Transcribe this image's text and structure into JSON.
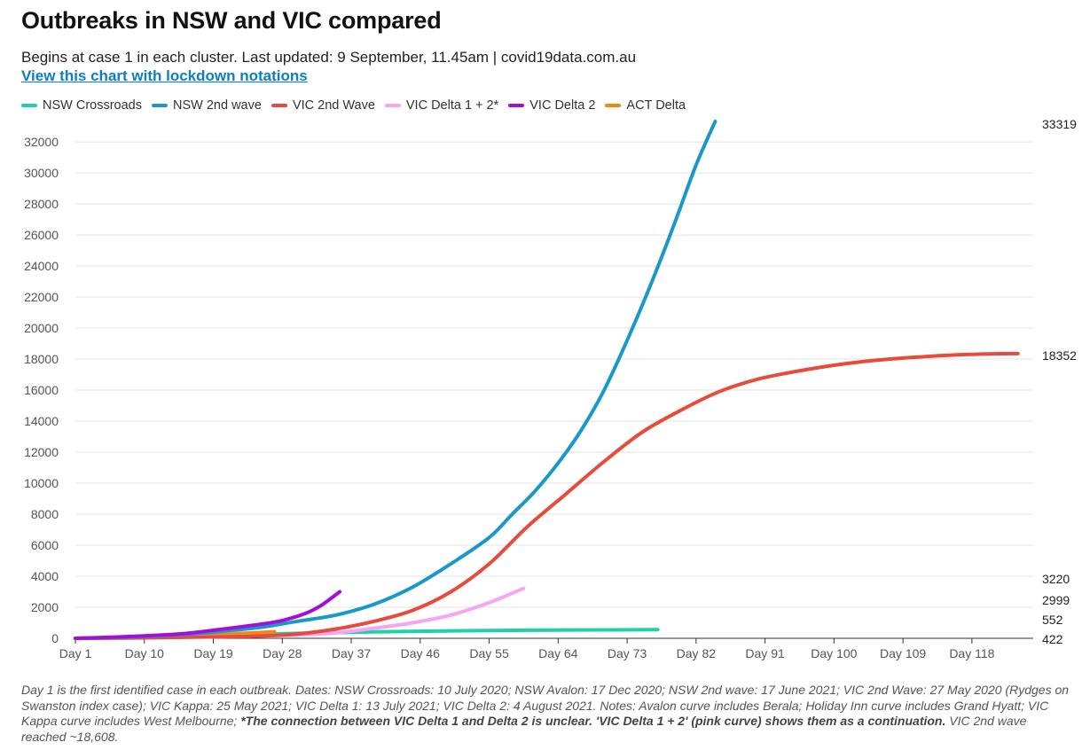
{
  "title": "Outbreaks in NSW and VIC compared",
  "subtitle": "Begins at case 1 in each cluster. Last updated: 9 September, 11.45am | covid19data.com.au",
  "link_text": "View this chart with lockdown notations",
  "note": {
    "part1": "Day 1 is the first identified case in each outbreak. Dates: NSW Crossroads: 10 July 2020; NSW Avalon: 17 Dec 2020; NSW 2nd wave: 17 June 2021; VIC 2nd Wave: 27 May 2020 (Rydges on Swanston index case); VIC Kappa: 25 May 2021; VIC Delta 1: 13 July 2021; VIC Delta 2: 4 August 2021. Notes: Avalon curve includes Berala; Holiday Inn curve includes Grand Hyatt; VIC Kappa curve includes West Melbourne; ",
    "bold": "*The connection between VIC Delta 1 and Delta 2 is unclear. 'VIC Delta 1 + 2' (pink curve) shows them as a continuation.",
    "part2": " VIC 2nd wave reached ~18,608."
  },
  "chart_data": {
    "type": "line",
    "xlim": [
      1,
      126
    ],
    "ylim": [
      0,
      33319
    ],
    "y_ticks": [
      0,
      2000,
      4000,
      6000,
      8000,
      10000,
      12000,
      14000,
      16000,
      18000,
      20000,
      22000,
      24000,
      26000,
      28000,
      30000,
      32000
    ],
    "y_tick_labels": [
      "0",
      "2000",
      "4000",
      "6000",
      "8000",
      "10000",
      "12000",
      "14000",
      "16000",
      "18000",
      "20000",
      "22000",
      "24000",
      "26000",
      "28000",
      "30000",
      "32000"
    ],
    "x_ticks": [
      1,
      10,
      19,
      28,
      37,
      46,
      55,
      64,
      73,
      82,
      91,
      100,
      109,
      118
    ],
    "x_tick_labels": [
      "Day 1",
      "Day 10",
      "Day 19",
      "Day 28",
      "Day 37",
      "Day 46",
      "Day 55",
      "Day 64",
      "Day 73",
      "Day 82",
      "Day 91",
      "Day 100",
      "Day 109",
      "Day 118"
    ],
    "end_labels": [
      "33319",
      "18352",
      "3220",
      "2999",
      "552",
      "422"
    ],
    "series": [
      {
        "name": "NSW Crossroads",
        "color": "#1fd1a5",
        "x": [
          1,
          10,
          20,
          30,
          40,
          50,
          60,
          70,
          77
        ],
        "y": [
          0,
          60,
          180,
          320,
          420,
          480,
          520,
          545,
          552
        ]
      },
      {
        "name": "NSW 2nd wave",
        "color": "#1899c9",
        "x": [
          1,
          5,
          10,
          15,
          20,
          25,
          30,
          35,
          40,
          45,
          50,
          55,
          58,
          61,
          64,
          67,
          70,
          73,
          76,
          79,
          82,
          84.5
        ],
        "y": [
          0,
          40,
          120,
          250,
          450,
          700,
          1100,
          1500,
          2200,
          3300,
          4800,
          6500,
          8000,
          9500,
          11300,
          13400,
          16000,
          19200,
          22700,
          26500,
          30500,
          33319
        ]
      },
      {
        "name": "VIC 2nd Wave",
        "color": "#e84a3c",
        "x": [
          1,
          10,
          20,
          25,
          30,
          35,
          40,
          45,
          50,
          55,
          60,
          65,
          70,
          75,
          80,
          85,
          90,
          95,
          100,
          105,
          110,
          115,
          120,
          124
        ],
        "y": [
          0,
          30,
          100,
          150,
          280,
          600,
          1100,
          1800,
          3000,
          4800,
          7200,
          9300,
          11400,
          13300,
          14700,
          15900,
          16700,
          17200,
          17600,
          17900,
          18100,
          18250,
          18330,
          18352
        ]
      },
      {
        "name": "VIC Delta 1 + 2*",
        "color": "#f6a5f4",
        "x": [
          1,
          5,
          10,
          15,
          20,
          25,
          30,
          35,
          40,
          45,
          50,
          55,
          59.5
        ],
        "y": [
          0,
          20,
          50,
          80,
          110,
          150,
          220,
          350,
          650,
          1000,
          1500,
          2300,
          3220
        ]
      },
      {
        "name": "VIC Delta 2",
        "color": "#a20fd8",
        "x": [
          1,
          5,
          10,
          15,
          20,
          25,
          28,
          31,
          33,
          35.5
        ],
        "y": [
          0,
          60,
          160,
          300,
          580,
          900,
          1150,
          1600,
          2100,
          2999
        ]
      },
      {
        "name": "ACT Delta",
        "color": "#f2880f",
        "x": [
          1,
          8,
          12,
          17,
          22,
          27
        ],
        "y": [
          0,
          40,
          90,
          180,
          300,
          422
        ]
      }
    ]
  }
}
